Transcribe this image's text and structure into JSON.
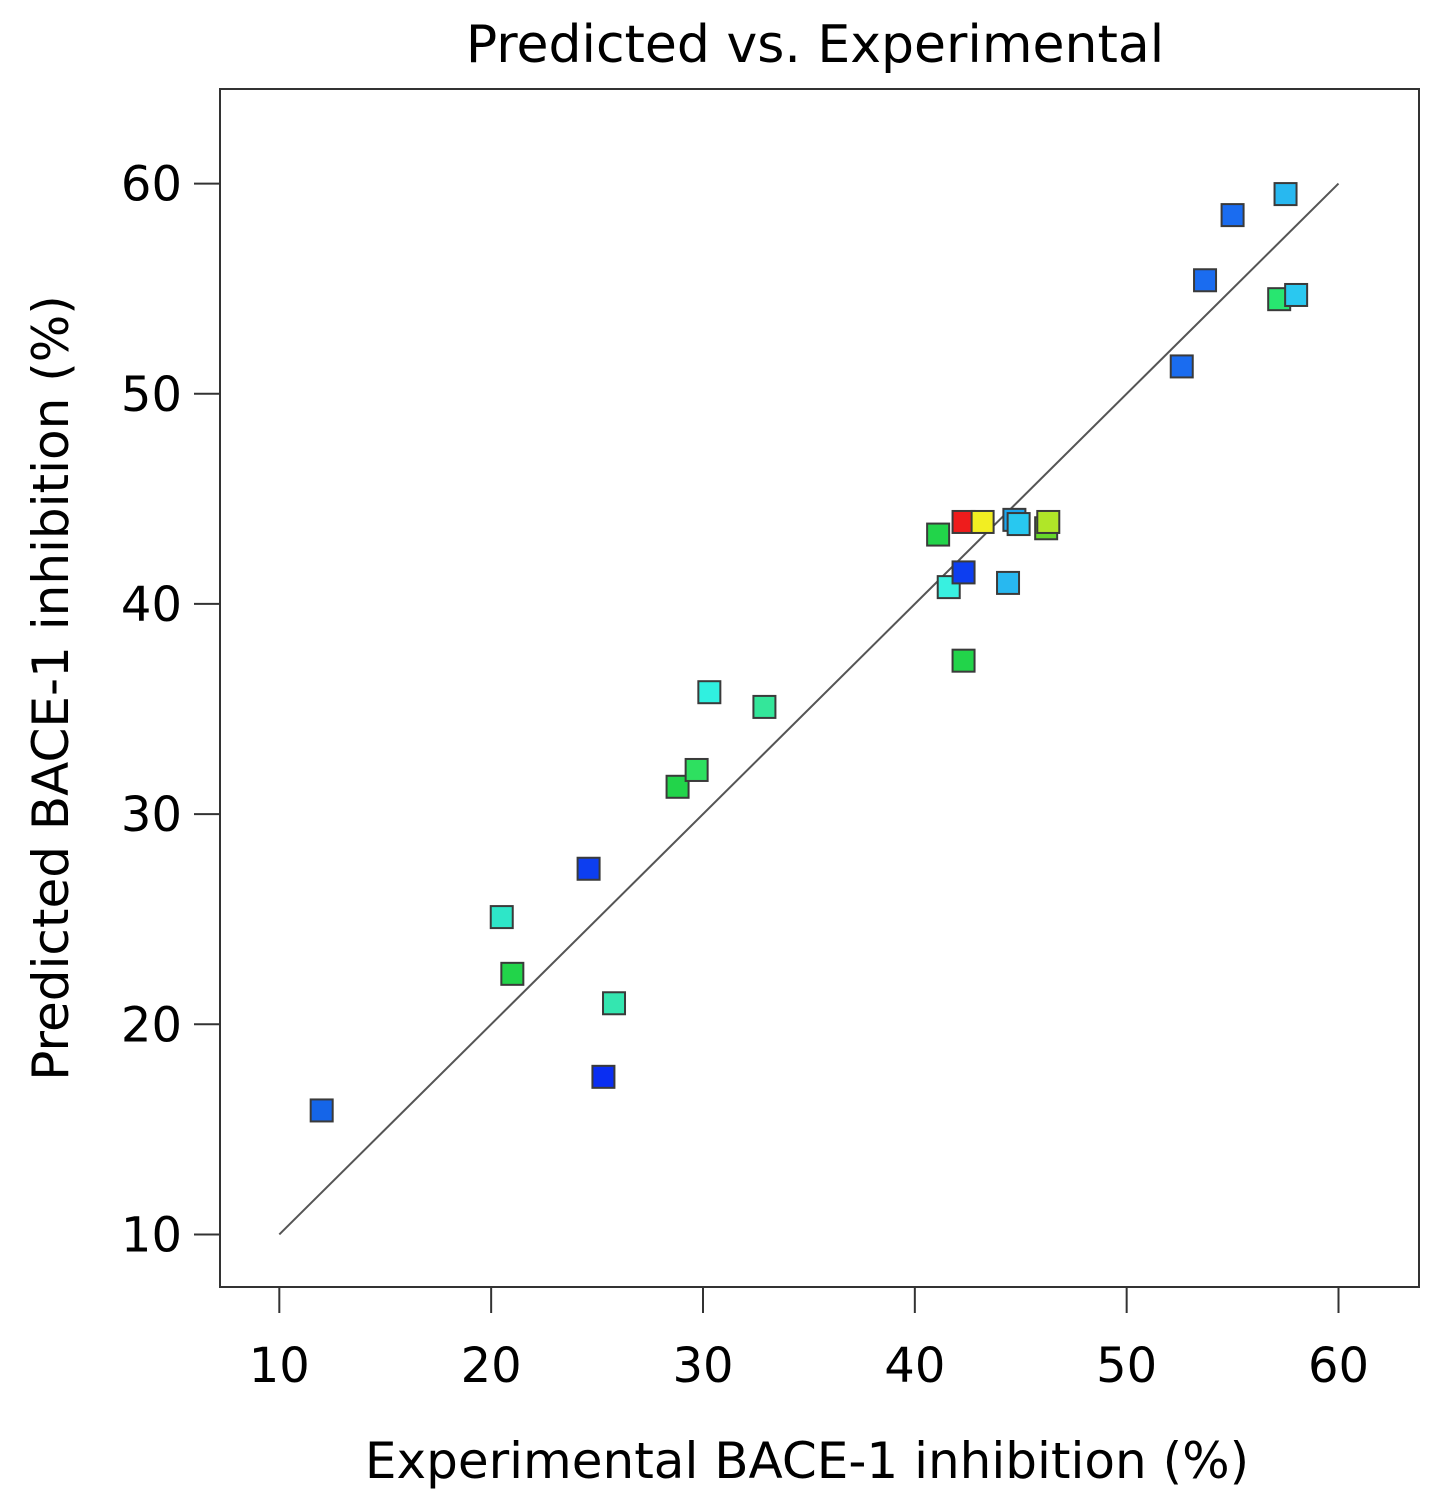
{
  "chart_data": {
    "type": "scatter",
    "title": "Predicted vs. Experimental",
    "xlabel": "Experimental BACE-1 inhibition (%)",
    "ylabel": "Predicted BACE-1 inhibition (%)",
    "xlim": [
      7.2,
      63.8
    ],
    "ylim": [
      7.5,
      64.5
    ],
    "xticks": [
      10,
      20,
      30,
      40,
      50,
      60
    ],
    "yticks": [
      10,
      20,
      30,
      40,
      50,
      60
    ],
    "grid": false,
    "reference_line": {
      "from": [
        10,
        10
      ],
      "to": [
        60,
        60
      ],
      "color": "#555555"
    },
    "points": [
      {
        "x": 12.0,
        "y": 15.9,
        "color": "#1565e8"
      },
      {
        "x": 20.5,
        "y": 25.1,
        "color": "#2ee6c8"
      },
      {
        "x": 21.0,
        "y": 22.4,
        "color": "#22d44a"
      },
      {
        "x": 24.6,
        "y": 27.4,
        "color": "#0d3ef0"
      },
      {
        "x": 25.3,
        "y": 17.5,
        "color": "#0a2ef2"
      },
      {
        "x": 25.8,
        "y": 21.0,
        "color": "#34e6b0"
      },
      {
        "x": 28.8,
        "y": 31.3,
        "color": "#22d44a"
      },
      {
        "x": 29.7,
        "y": 32.1,
        "color": "#2ee060"
      },
      {
        "x": 30.3,
        "y": 35.8,
        "color": "#30f0e0"
      },
      {
        "x": 32.9,
        "y": 35.1,
        "color": "#34e69a"
      },
      {
        "x": 41.1,
        "y": 43.3,
        "color": "#22d44a"
      },
      {
        "x": 41.6,
        "y": 40.8,
        "color": "#38f0e0"
      },
      {
        "x": 42.3,
        "y": 41.5,
        "color": "#0d3ef0"
      },
      {
        "x": 42.3,
        "y": 37.3,
        "color": "#22d44a"
      },
      {
        "x": 42.3,
        "y": 43.9,
        "color": "#ee1c1c"
      },
      {
        "x": 43.2,
        "y": 43.9,
        "color": "#f2ee22"
      },
      {
        "x": 44.4,
        "y": 41.0,
        "color": "#28b8f0"
      },
      {
        "x": 44.7,
        "y": 44.0,
        "color": "#1aa6f0"
      },
      {
        "x": 44.9,
        "y": 43.8,
        "color": "#28c8f0"
      },
      {
        "x": 46.2,
        "y": 43.6,
        "color": "#66d82a"
      },
      {
        "x": 46.3,
        "y": 43.9,
        "color": "#b0e628"
      },
      {
        "x": 52.6,
        "y": 51.3,
        "color": "#1a6cf0"
      },
      {
        "x": 53.7,
        "y": 55.4,
        "color": "#1a6cf0"
      },
      {
        "x": 55.0,
        "y": 58.5,
        "color": "#1a6cf0"
      },
      {
        "x": 57.2,
        "y": 54.5,
        "color": "#28e670"
      },
      {
        "x": 57.5,
        "y": 59.5,
        "color": "#28b8f0"
      },
      {
        "x": 58.0,
        "y": 54.7,
        "color": "#2ac8f0"
      }
    ]
  }
}
